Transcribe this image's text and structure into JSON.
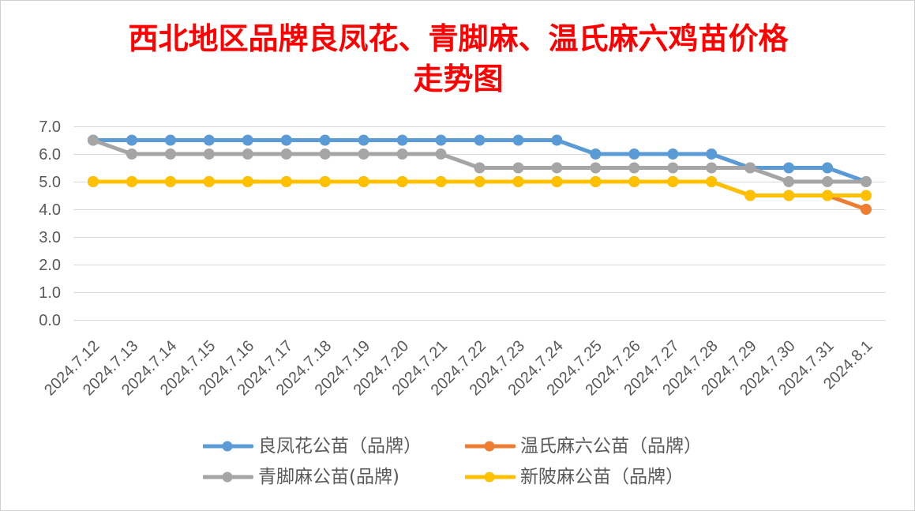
{
  "chart_data": {
    "type": "line",
    "title": "西北地区品牌良凤花、青脚麻、温氏麻六鸡苗价格\n走势图",
    "title_color": "#FF0000",
    "categories": [
      "2024.7.12",
      "2024.7.13",
      "2024.7.14",
      "2024.7.15",
      "2024.7.16",
      "2024.7.17",
      "2024.7.18",
      "2024.7.19",
      "2024.7.20",
      "2024.7.21",
      "2024.7.22",
      "2024.7.23",
      "2024.7.24",
      "2024.7.25",
      "2024.7.26",
      "2024.7.27",
      "2024.7.28",
      "2024.7.29",
      "2024.7.30",
      "2024.7.31",
      "2024.8.1"
    ],
    "ylim": [
      0,
      7
    ],
    "yticks": [
      "0.0",
      "1.0",
      "2.0",
      "3.0",
      "4.0",
      "5.0",
      "6.0",
      "7.0"
    ],
    "grid": true,
    "legend": "bottom",
    "series": [
      {
        "name": "良凤花公苗（品牌）",
        "color": "#5B9BD5",
        "values": [
          6.5,
          6.5,
          6.5,
          6.5,
          6.5,
          6.5,
          6.5,
          6.5,
          6.5,
          6.5,
          6.5,
          6.5,
          6.5,
          6.0,
          6.0,
          6.0,
          6.0,
          5.5,
          5.5,
          5.5,
          5.0
        ]
      },
      {
        "name": "温氏麻六公苗（品牌）",
        "color": "#ED7D31",
        "values": [
          5.0,
          5.0,
          5.0,
          5.0,
          5.0,
          5.0,
          5.0,
          5.0,
          5.0,
          5.0,
          5.0,
          5.0,
          5.0,
          5.0,
          5.0,
          5.0,
          5.0,
          4.5,
          4.5,
          4.5,
          4.0
        ]
      },
      {
        "name": "青脚麻公苗(品牌)",
        "color": "#A5A5A5",
        "values": [
          6.5,
          6.0,
          6.0,
          6.0,
          6.0,
          6.0,
          6.0,
          6.0,
          6.0,
          6.0,
          5.5,
          5.5,
          5.5,
          5.5,
          5.5,
          5.5,
          5.5,
          5.5,
          5.0,
          5.0,
          5.0
        ]
      },
      {
        "name": "新陂麻公苗（品牌）",
        "color": "#FFC000",
        "values": [
          5.0,
          5.0,
          5.0,
          5.0,
          5.0,
          5.0,
          5.0,
          5.0,
          5.0,
          5.0,
          5.0,
          5.0,
          5.0,
          5.0,
          5.0,
          5.0,
          5.0,
          4.5,
          4.5,
          4.5,
          4.5
        ]
      }
    ]
  }
}
